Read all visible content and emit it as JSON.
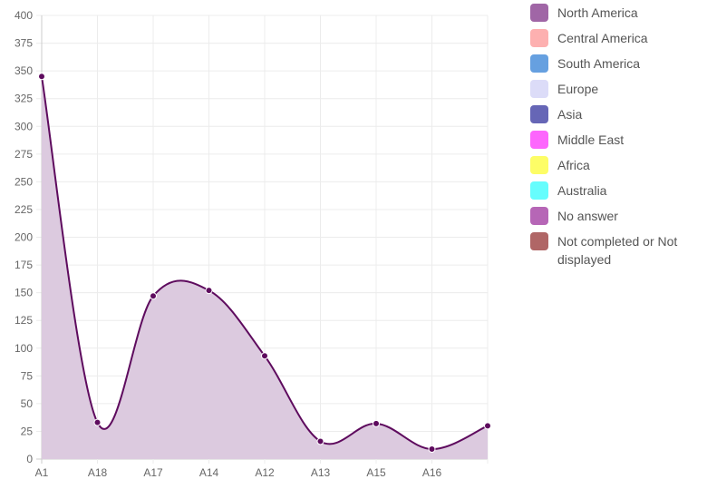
{
  "chart_data": {
    "type": "area",
    "categories": [
      "A1",
      "A18",
      "A17",
      "A14",
      "A12",
      "A13",
      "A15",
      "A16",
      ""
    ],
    "values": [
      345,
      33,
      147,
      152,
      93,
      16,
      32,
      9,
      30
    ],
    "ylim": [
      0,
      400
    ],
    "yticks": [
      0,
      25,
      50,
      75,
      100,
      125,
      150,
      175,
      200,
      225,
      250,
      275,
      300,
      325,
      350,
      375,
      400
    ],
    "grid": true,
    "line_color": "#5e0b5e",
    "fill_color": "#dccadf",
    "legend_position": "right"
  },
  "legend": {
    "items": [
      {
        "label": "North America",
        "color": "#a066a6"
      },
      {
        "label": "Central America",
        "color": "#fdb0b0"
      },
      {
        "label": "South America",
        "color": "#66a0e0"
      },
      {
        "label": "Europe",
        "color": "#dcdcf8"
      },
      {
        "label": "Asia",
        "color": "#6666b6"
      },
      {
        "label": "Middle East",
        "color": "#fd66fd"
      },
      {
        "label": "Africa",
        "color": "#fdfd66"
      },
      {
        "label": "Australia",
        "color": "#66fdfd"
      },
      {
        "label": "No answer",
        "color": "#b666b6"
      },
      {
        "label": "Not completed or Not displayed",
        "color": "#b06666"
      }
    ]
  }
}
